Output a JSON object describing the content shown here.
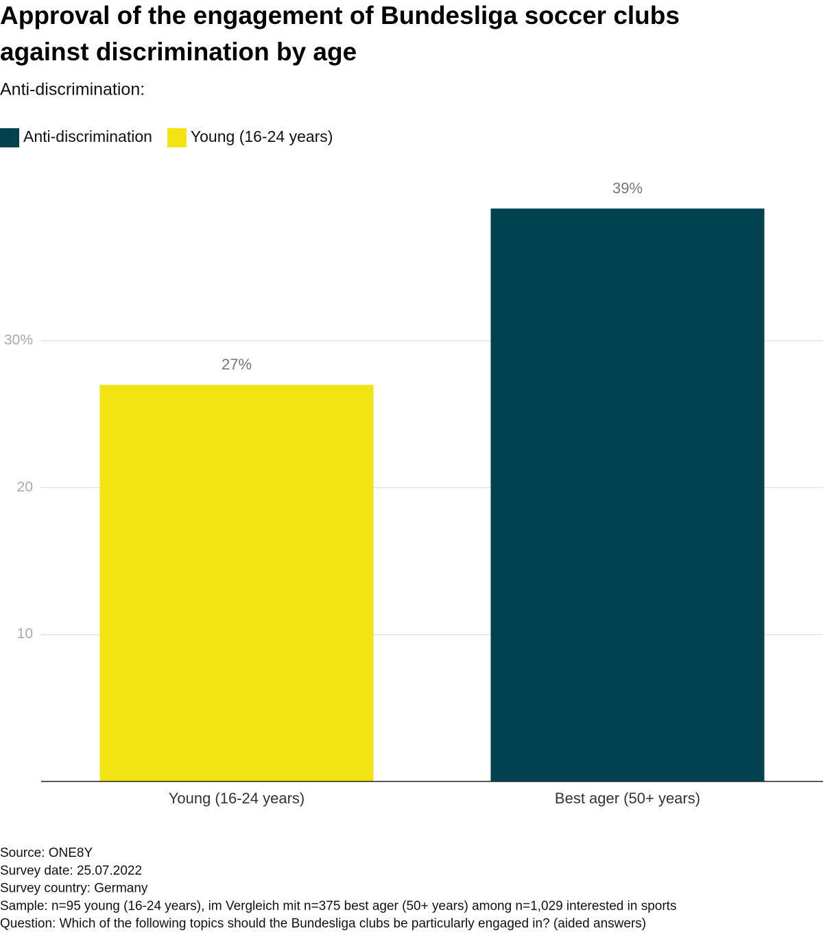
{
  "chart_data": {
    "type": "bar",
    "title": [
      "Approval of the engagement of Bundesliga soccer clubs",
      "against discrimination by age"
    ],
    "subtitle": "Anti-discrimination:",
    "categories": [
      "Young (16-24 years)",
      "Best ager (50+ years)"
    ],
    "series": [
      {
        "name": "Anti-discrimination",
        "color": "#00424f",
        "values": [
          null,
          39
        ],
        "value_labels": [
          null,
          "39%"
        ]
      },
      {
        "name": "Young (16-24 years)",
        "color": "#f2e313",
        "values": [
          27,
          null
        ],
        "value_labels": [
          "27%",
          null
        ]
      }
    ],
    "ylim": [
      0,
      41
    ],
    "yticks": [
      10,
      20,
      {
        "value": 30,
        "label": "30%"
      }
    ],
    "grid": true,
    "notes": [
      "Source: ONE8Y",
      "Survey date: 25.07.2022",
      "Survey country: Germany",
      "Sample: n=95 young (16-24 years), im Vergleich mit n=375 best ager (50+ years) among n=1,029 interested in sports",
      "Question: Which of the following topics should the Bundesliga clubs be particularly engaged in? (aided answers)"
    ]
  }
}
